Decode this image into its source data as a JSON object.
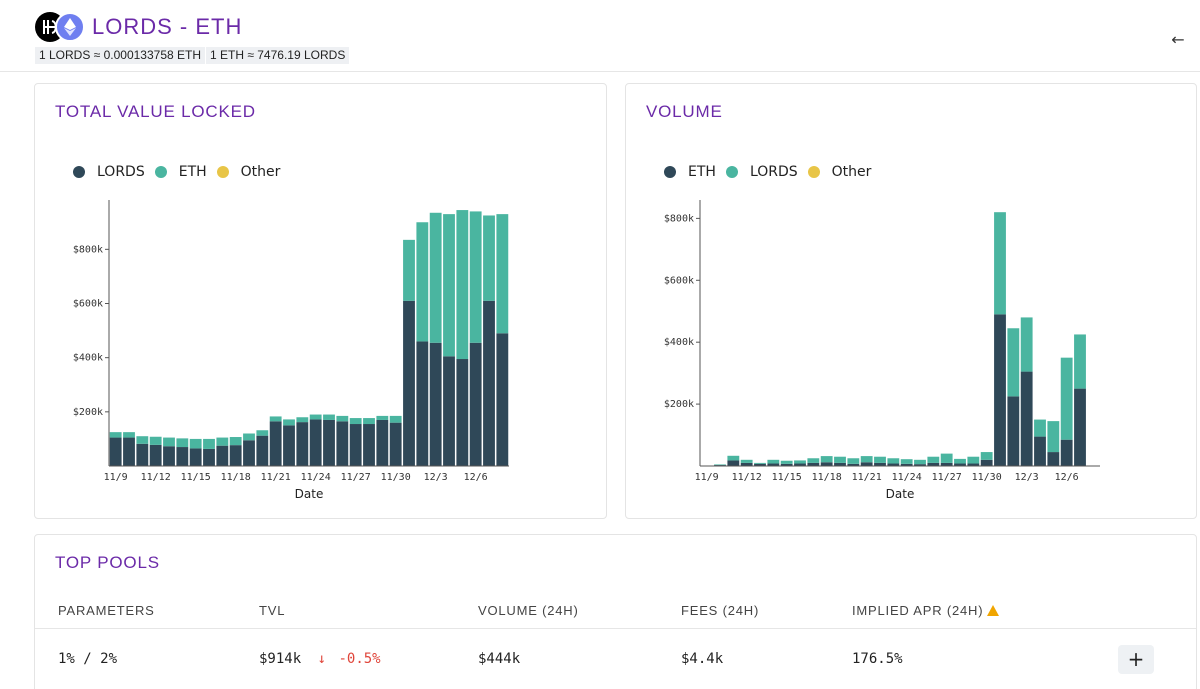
{
  "header": {
    "title": "LORDS - ETH",
    "rate_lords_eth": "1 LORDS ≈ 0.000133758 ETH",
    "rate_eth_lords": "1 ETH ≈ 7476.19 LORDS",
    "icons": [
      "lords-token-icon",
      "eth-token-icon"
    ],
    "back_icon": "←"
  },
  "colors": {
    "accent": "#6b2aa8",
    "dark_series": "#2f4858",
    "teal_series": "#4ab5a0",
    "other_series": "#e8c547",
    "negative": "#e0453a"
  },
  "tvl": {
    "title": "TOTAL VALUE LOCKED",
    "legend": [
      {
        "name": "LORDS",
        "color": "#2f4858"
      },
      {
        "name": "ETH",
        "color": "#4ab5a0"
      },
      {
        "name": "Other",
        "color": "#e8c547"
      }
    ]
  },
  "volume": {
    "title": "VOLUME",
    "legend": [
      {
        "name": "ETH",
        "color": "#2f4858"
      },
      {
        "name": "LORDS",
        "color": "#4ab5a0"
      },
      {
        "name": "Other",
        "color": "#e8c547"
      }
    ]
  },
  "chart_data": [
    {
      "type": "bar",
      "stacked": true,
      "title": "TOTAL VALUE LOCKED",
      "xlabel": "Date",
      "ylabel": "",
      "ylim": [
        0,
        960000
      ],
      "yticks": [
        200000,
        400000,
        600000,
        800000
      ],
      "ytick_labels": [
        "$200k",
        "$400k",
        "$600k",
        "$800k"
      ],
      "xticks": [
        "11/9",
        "11/12",
        "11/15",
        "11/18",
        "11/21",
        "11/24",
        "11/27",
        "11/30",
        "12/3",
        "12/6"
      ],
      "categories": [
        "11/9",
        "11/10",
        "11/11",
        "11/12",
        "11/13",
        "11/14",
        "11/15",
        "11/16",
        "11/17",
        "11/18",
        "11/19",
        "11/20",
        "11/21",
        "11/22",
        "11/23",
        "11/24",
        "11/25",
        "11/26",
        "11/27",
        "11/28",
        "11/29",
        "11/30",
        "12/1",
        "12/2",
        "12/3",
        "12/4",
        "12/5",
        "12/6",
        "12/7",
        "12/8"
      ],
      "series": [
        {
          "name": "LORDS",
          "color": "#2f4858",
          "values": [
            105000,
            105000,
            82000,
            78000,
            73000,
            70000,
            65000,
            63000,
            75000,
            77000,
            95000,
            112000,
            165000,
            150000,
            162000,
            172000,
            170000,
            165000,
            155000,
            155000,
            170000,
            160000,
            610000,
            460000,
            455000,
            405000,
            395000,
            455000,
            610000,
            490000
          ]
        },
        {
          "name": "ETH",
          "color": "#4ab5a0",
          "values": [
            20000,
            20000,
            28000,
            30000,
            32000,
            32000,
            35000,
            37000,
            30000,
            30000,
            25000,
            20000,
            18000,
            22000,
            18000,
            18000,
            20000,
            20000,
            22000,
            22000,
            15000,
            25000,
            225000,
            440000,
            480000,
            525000,
            550000,
            485000,
            315000,
            440000
          ]
        },
        {
          "name": "Other",
          "color": "#e8c547",
          "values": [
            0,
            0,
            0,
            0,
            0,
            0,
            0,
            0,
            0,
            0,
            0,
            0,
            0,
            0,
            0,
            0,
            0,
            0,
            0,
            0,
            0,
            0,
            0,
            0,
            0,
            0,
            0,
            0,
            0,
            0
          ]
        }
      ]
    },
    {
      "type": "bar",
      "stacked": true,
      "title": "VOLUME",
      "xlabel": "Date",
      "ylabel": "",
      "ylim": [
        0,
        840000
      ],
      "yticks": [
        200000,
        400000,
        600000,
        800000
      ],
      "ytick_labels": [
        "$200k",
        "$400k",
        "$600k",
        "$800k"
      ],
      "xticks": [
        "11/9",
        "11/12",
        "11/15",
        "11/18",
        "11/21",
        "11/24",
        "11/27",
        "11/30",
        "12/3",
        "12/6"
      ],
      "categories": [
        "11/9",
        "11/10",
        "11/11",
        "11/12",
        "11/13",
        "11/14",
        "11/15",
        "11/16",
        "11/17",
        "11/18",
        "11/19",
        "11/20",
        "11/21",
        "11/22",
        "11/23",
        "11/24",
        "11/25",
        "11/26",
        "11/27",
        "11/28",
        "11/29",
        "11/30",
        "12/1",
        "12/2",
        "12/3",
        "12/4",
        "12/5",
        "12/6",
        "12/7",
        "12/8"
      ],
      "series": [
        {
          "name": "ETH",
          "color": "#2f4858",
          "values": [
            0,
            3000,
            18000,
            10000,
            7000,
            8000,
            7000,
            8000,
            10000,
            12000,
            10000,
            7000,
            12000,
            10000,
            8000,
            7000,
            6000,
            10000,
            10000,
            8000,
            8000,
            20000,
            490000,
            225000,
            305000,
            95000,
            45000,
            85000,
            250000,
            0
          ]
        },
        {
          "name": "LORDS",
          "color": "#4ab5a0",
          "values": [
            0,
            2000,
            15000,
            10000,
            3000,
            12000,
            10000,
            10000,
            15000,
            20000,
            20000,
            18000,
            20000,
            20000,
            17000,
            15000,
            14000,
            20000,
            30000,
            15000,
            22000,
            25000,
            330000,
            220000,
            175000,
            55000,
            100000,
            265000,
            175000,
            0
          ]
        },
        {
          "name": "Other",
          "color": "#e8c547",
          "values": [
            0,
            0,
            0,
            0,
            0,
            0,
            0,
            0,
            0,
            0,
            0,
            0,
            0,
            0,
            0,
            0,
            0,
            0,
            0,
            0,
            0,
            0,
            0,
            0,
            0,
            0,
            0,
            0,
            0,
            0
          ]
        }
      ]
    }
  ],
  "pools": {
    "title": "TOP POOLS",
    "columns": {
      "parameters": "PARAMETERS",
      "tvl": "TVL",
      "volume": "VOLUME (24H)",
      "fees": "FEES (24H)",
      "apr": "IMPLIED APR (24H)"
    },
    "rows": [
      {
        "parameters": "1% / 2%",
        "tvl": "$914k",
        "tvl_change_arrow": "↓",
        "tvl_change": "-0.5%",
        "volume": "$444k",
        "fees": "$4.4k",
        "apr": "176.5%",
        "action": "+"
      }
    ]
  }
}
